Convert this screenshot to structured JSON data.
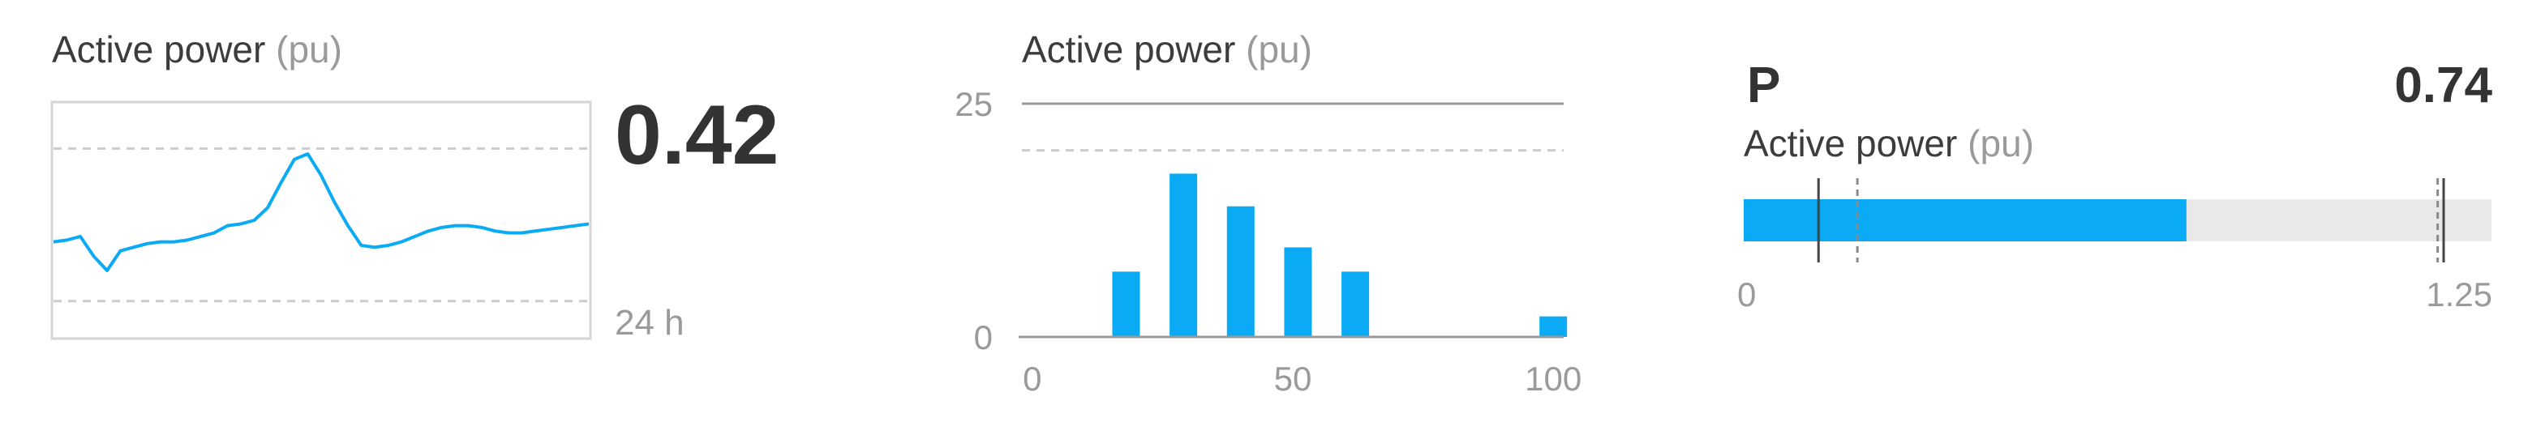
{
  "colors": {
    "accent": "#0aaaf5",
    "track": "#e9e9e9",
    "grid": "#cccccc",
    "axis": "#999999",
    "text": "#3c3c3c",
    "muted": "#9a9a9a"
  },
  "sparkline": {
    "title": "Active power",
    "unit": "(pu)",
    "value": "0.42",
    "window": "24 h"
  },
  "histogram": {
    "title": "Active power",
    "unit": "(pu)"
  },
  "gauge": {
    "symbol": "P",
    "value": "0.74",
    "title": "Active power",
    "unit": "(pu)",
    "min_label": "0",
    "max_label": "1.25"
  },
  "chart_data": [
    {
      "type": "line",
      "x": [
        0,
        1,
        2,
        3,
        4,
        5,
        6,
        7,
        8,
        9,
        10,
        11,
        12,
        13,
        14,
        15,
        16,
        17,
        18,
        19,
        20,
        21,
        22,
        23,
        24,
        25,
        26,
        27,
        28,
        29,
        30,
        31,
        32,
        33,
        34,
        35,
        36,
        37,
        38,
        39,
        40
      ],
      "values": [
        0.33,
        0.34,
        0.36,
        0.25,
        0.17,
        0.28,
        0.3,
        0.32,
        0.33,
        0.33,
        0.34,
        0.36,
        0.38,
        0.42,
        0.43,
        0.45,
        0.52,
        0.66,
        0.79,
        0.82,
        0.7,
        0.55,
        0.42,
        0.31,
        0.3,
        0.31,
        0.33,
        0.36,
        0.39,
        0.41,
        0.42,
        0.42,
        0.41,
        0.39,
        0.38,
        0.38,
        0.39,
        0.4,
        0.41,
        0.42,
        0.43
      ],
      "ylim": [
        -0.2,
        1.1
      ],
      "reference_lines": [
        0.0,
        0.85
      ],
      "window": "24 h"
    },
    {
      "type": "bar",
      "x": [
        18,
        29,
        40,
        51,
        62,
        100
      ],
      "values": [
        7,
        17.5,
        14,
        9.6,
        7,
        2.2
      ],
      "xlim": [
        -2,
        102
      ],
      "xticks": [
        0,
        50,
        100
      ],
      "ylim": [
        0,
        25
      ],
      "yticks": [
        0,
        25
      ],
      "reference_line": 20
    },
    {
      "type": "bar",
      "value": 0.74,
      "range": [
        0,
        1.25
      ],
      "solid_markers": [
        0.125,
        1.17
      ],
      "dashed_markers": [
        0.19,
        1.16
      ]
    }
  ]
}
